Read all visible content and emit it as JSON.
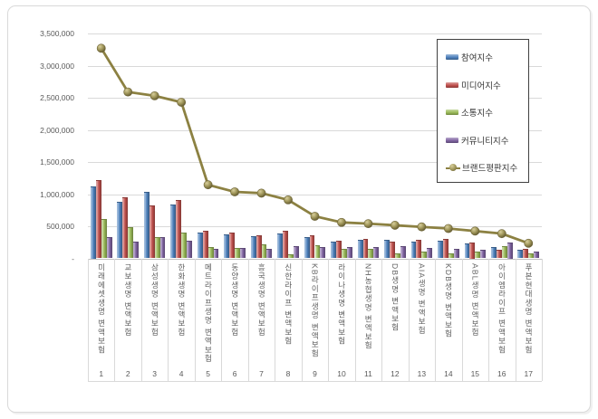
{
  "chart_data": {
    "type": "bar+line",
    "categories": [
      "미래에셋생명 변액보험",
      "교보생명 변액보험",
      "삼성생명 변액보험",
      "한화생명 변액보험",
      "메트라이프생명 변액보험",
      "동양생명 변액보험",
      "흥국생명 변액보험",
      "신한라이프 변액보험",
      "KB라이프생명 변액보험",
      "라이나생명 변액보험",
      "NH농협생명 변액보험",
      "DB생명 변액보험",
      "AIA생명 변액보험",
      "KDB생명 변액보험",
      "ABL생명 변액보험",
      "아이엠라이프 변액보험",
      "푸본현대생명 변액보험"
    ],
    "rank_labels": [
      "1",
      "2",
      "3",
      "4",
      "5",
      "6",
      "7",
      "8",
      "9",
      "10",
      "11",
      "12",
      "13",
      "14",
      "15",
      "16",
      "17"
    ],
    "series": [
      {
        "name": "참여지수",
        "type": "bar",
        "color": "#4E81BD",
        "values": [
          1125000,
          885000,
          1035000,
          845000,
          395000,
          370000,
          340000,
          385000,
          330000,
          260000,
          285000,
          290000,
          255000,
          280000,
          235000,
          175000,
          140000
        ]
      },
      {
        "name": "미디어지수",
        "type": "bar",
        "color": "#C0504D",
        "values": [
          1215000,
          955000,
          830000,
          910000,
          430000,
          395000,
          360000,
          425000,
          355000,
          275000,
          300000,
          265000,
          290000,
          300000,
          250000,
          140000,
          150000
        ]
      },
      {
        "name": "소통지수",
        "type": "bar",
        "color": "#9BBB59",
        "values": [
          610000,
          480000,
          330000,
          405000,
          180000,
          160000,
          225000,
          60000,
          205000,
          150000,
          150000,
          80000,
          110000,
          80000,
          110000,
          195000,
          80000
        ]
      },
      {
        "name": "커뮤니티지수",
        "type": "bar",
        "color": "#8064A2",
        "values": [
          335000,
          265000,
          330000,
          280000,
          150000,
          160000,
          145000,
          190000,
          170000,
          175000,
          175000,
          195000,
          160000,
          150000,
          140000,
          250000,
          110000
        ]
      },
      {
        "name": "브랜드평판지수",
        "type": "line",
        "color": "#8C8142",
        "values": [
          3270000,
          2590000,
          2530000,
          2430000,
          1145000,
          1035000,
          1015000,
          910000,
          655000,
          560000,
          540000,
          515000,
          490000,
          465000,
          425000,
          385000,
          235000
        ]
      }
    ],
    "y_axis": {
      "ticks": [
        "3,500,000",
        "3,000,000",
        "2,500,000",
        "2,000,000",
        "1,500,000",
        "1,000,000",
        "500,000",
        "-"
      ],
      "max": 3500000,
      "step": 500000
    },
    "grid": true,
    "legend_position": "upper-right"
  }
}
